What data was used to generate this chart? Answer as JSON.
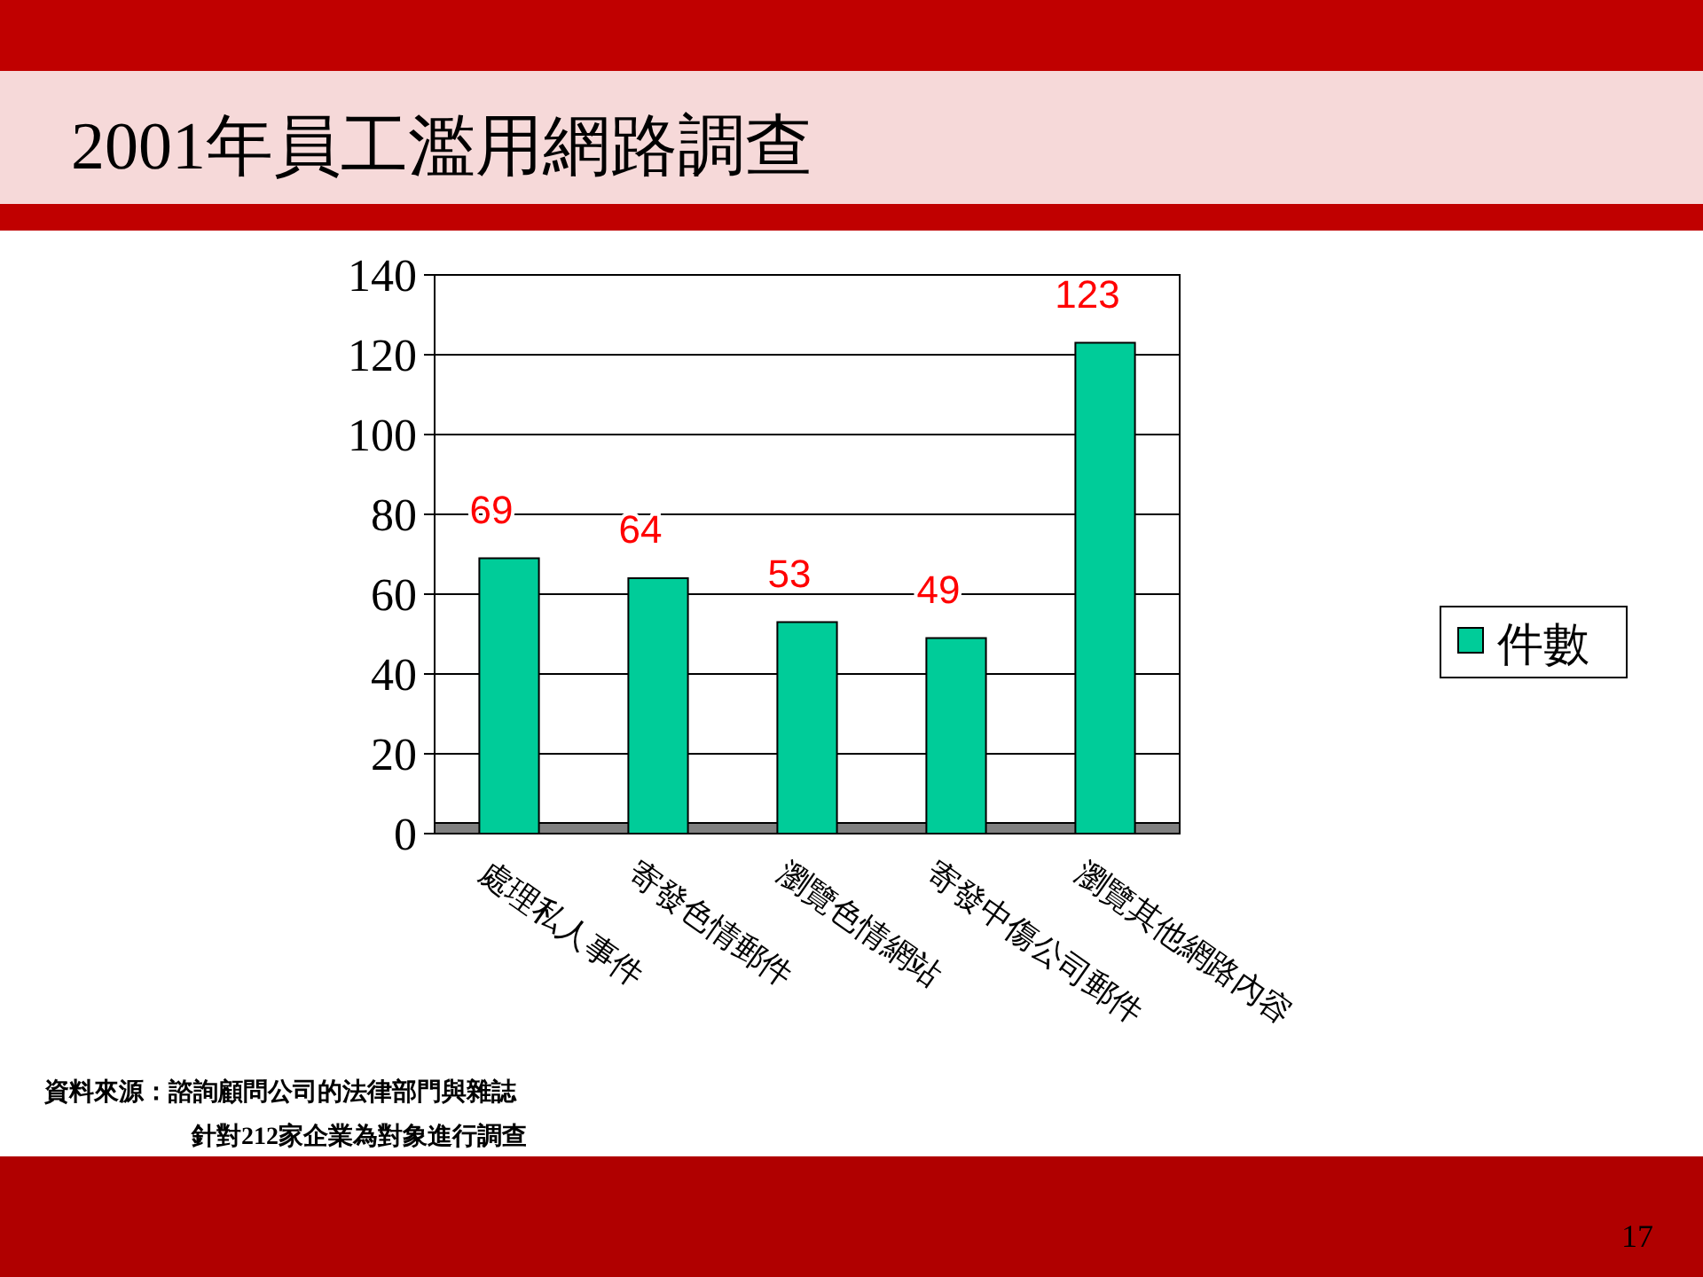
{
  "chart_data": {
    "type": "bar",
    "title": "2001年員工濫用網路調查",
    "categories": [
      "處理私人事件",
      "寄發色情郵件",
      "瀏覽色情網站",
      "寄發中傷公司郵件",
      "瀏覽其他網路內容"
    ],
    "series": [
      {
        "name": "件數",
        "color": "#00cc99",
        "values": [
          69,
          64,
          53,
          49,
          123
        ]
      }
    ],
    "ylim": [
      0,
      140
    ],
    "yticks": [
      0,
      20,
      40,
      60,
      80,
      100,
      120,
      140
    ],
    "grid": "y",
    "legend": "right",
    "data_labels": true,
    "annotations": [
      "資料來源：諮詢顧問公司的法律部門與雜誌",
      "針對212家企業為對象進行調查",
      "17"
    ]
  }
}
